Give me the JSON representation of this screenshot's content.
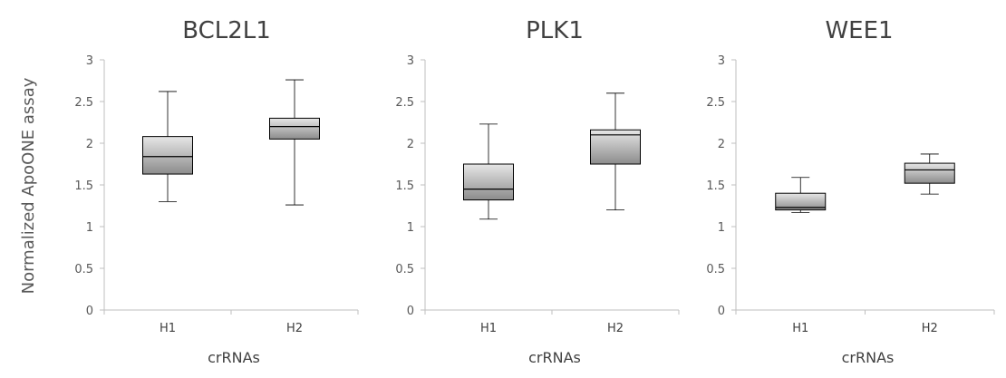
{
  "colors": {
    "box_light": "#e6e6e6",
    "box_dark": "#8c8c8c",
    "box_stroke": "#000000",
    "axis": "#bfbfbf",
    "text": "#595959"
  },
  "chart_data": [
    {
      "type": "box",
      "title": "BCL2L1",
      "xlabel": "crRNAs",
      "ylabel": "Normalized ApoONE assay",
      "ylim": [
        0,
        3
      ],
      "yticks": [
        0,
        0.5,
        1,
        1.5,
        2,
        2.5,
        3
      ],
      "ytick_labels": [
        "0",
        "0.5",
        "1",
        "1.5",
        "2",
        "2.5",
        "3"
      ],
      "grid": false,
      "categories": [
        "H1",
        "H2"
      ],
      "boxes": [
        {
          "category": "H1",
          "min": 1.3,
          "q1": 1.63,
          "median": 1.84,
          "q3": 2.08,
          "max": 2.62
        },
        {
          "category": "H2",
          "min": 1.26,
          "q1": 2.05,
          "median": 2.2,
          "q3": 2.3,
          "max": 2.76
        }
      ]
    },
    {
      "type": "box",
      "title": "PLK1",
      "xlabel": "crRNAs",
      "ylim": [
        0,
        3
      ],
      "yticks": [
        0,
        0.5,
        1,
        1.5,
        2,
        2.5,
        3
      ],
      "ytick_labels": [
        "0",
        "0.5",
        "1",
        "1.5",
        "2",
        "2.5",
        "3"
      ],
      "grid": false,
      "categories": [
        "H1",
        "H2"
      ],
      "boxes": [
        {
          "category": "H1",
          "min": 1.09,
          "q1": 1.32,
          "median": 1.45,
          "q3": 1.75,
          "max": 2.23
        },
        {
          "category": "H2",
          "min": 1.2,
          "q1": 1.75,
          "median": 2.1,
          "q3": 2.16,
          "max": 2.6
        }
      ]
    },
    {
      "type": "box",
      "title": "WEE1",
      "xlabel": "crRNAs",
      "ylim": [
        0,
        3
      ],
      "yticks": [
        0,
        0.5,
        1,
        1.5,
        2,
        2.5,
        3
      ],
      "ytick_labels": [
        "0",
        "0.5",
        "1",
        "1.5",
        "2",
        "2.5",
        "3"
      ],
      "grid": false,
      "categories": [
        "H1",
        "H2"
      ],
      "boxes": [
        {
          "category": "H1",
          "min": 1.17,
          "q1": 1.2,
          "median": 1.23,
          "q3": 1.4,
          "max": 1.59
        },
        {
          "category": "H2",
          "min": 1.39,
          "q1": 1.52,
          "median": 1.68,
          "q3": 1.76,
          "max": 1.87
        }
      ]
    }
  ]
}
